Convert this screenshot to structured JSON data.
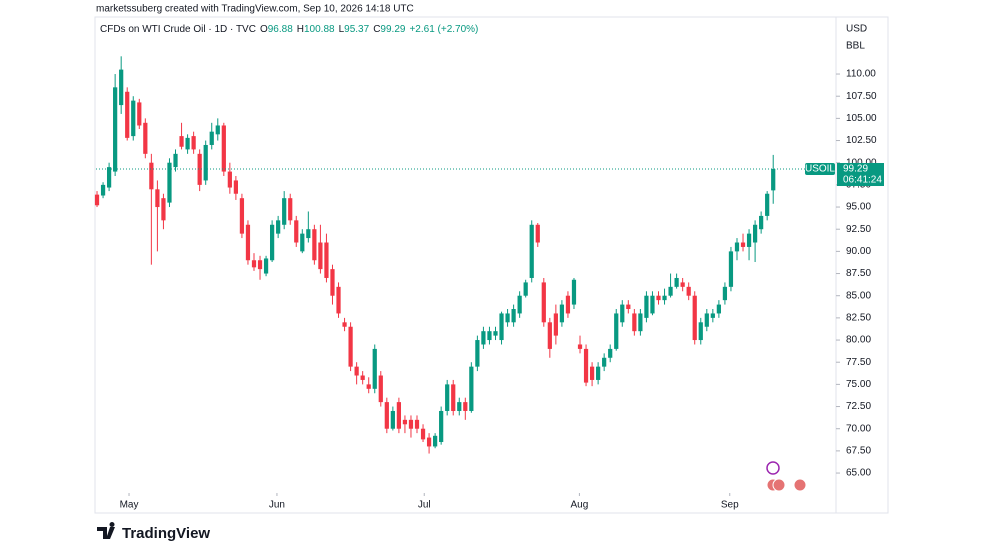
{
  "chart_data": {
    "type": "candlestick",
    "attribution": "marketssuberg created with TradingView.com, Sep 10, 2026 14:18 UTC",
    "title": "CFDs on WTI Crude Oil · 1D · TVC",
    "legend_values": [
      {
        "label": "O",
        "value": 96.88
      },
      {
        "label": "H",
        "value": 100.88
      },
      {
        "label": "L",
        "value": 95.37
      },
      {
        "label": "C",
        "value": 99.29
      }
    ],
    "change": "+2.61 (+2.70%)",
    "currency": "USD",
    "unit": "BBL",
    "symbol": "USOIL",
    "last_price": 99.29,
    "countdown": "06:41:24",
    "brand": "TradingView",
    "up_color": "#089981",
    "down_color": "#f23645",
    "xlim": [
      -0.17,
      122.4
    ],
    "xticks": [
      {
        "value": 5.3,
        "label": "May"
      },
      {
        "value": 29.8,
        "label": "Jun"
      },
      {
        "value": 54.2,
        "label": "Jul"
      },
      {
        "value": 79.9,
        "label": "Aug"
      },
      {
        "value": 104.8,
        "label": "Sep"
      }
    ],
    "ylim": [
      62.75,
      116.32
    ],
    "yticks": [
      {
        "value": 65,
        "label": "65.00"
      },
      {
        "value": 67.5,
        "label": "67.50"
      },
      {
        "value": 70,
        "label": "70.00"
      },
      {
        "value": 72.5,
        "label": "72.50"
      },
      {
        "value": 75,
        "label": "75.00"
      },
      {
        "value": 77.5,
        "label": "77.50"
      },
      {
        "value": 80,
        "label": "80.00"
      },
      {
        "value": 82.5,
        "label": "82.50"
      },
      {
        "value": 85,
        "label": "85.00"
      },
      {
        "value": 87.5,
        "label": "87.50"
      },
      {
        "value": 90,
        "label": "90.00"
      },
      {
        "value": 92.5,
        "label": "92.50"
      },
      {
        "value": 95,
        "label": "95.00"
      },
      {
        "value": 97.5,
        "label": "97.50"
      },
      {
        "value": 100,
        "label": "100.00"
      },
      {
        "value": 102.5,
        "label": "102.50"
      },
      {
        "value": 105,
        "label": "105.00"
      },
      {
        "value": 107.5,
        "label": "107.50"
      },
      {
        "value": 110,
        "label": "110.00"
      }
    ],
    "candles": [
      [
        96.4,
        96.8,
        95,
        95.2
      ],
      [
        96.3,
        97.8,
        96,
        97.5
      ],
      [
        97.2,
        100,
        96.8,
        99.5
      ],
      [
        99,
        110,
        98.5,
        108.5
      ],
      [
        106.5,
        112,
        105.5,
        110.5
      ],
      [
        108,
        108.5,
        102.5,
        102.8
      ],
      [
        103,
        107.5,
        102.5,
        107
      ],
      [
        106.8,
        107.2,
        103.8,
        104.2
      ],
      [
        104.5,
        105,
        100.5,
        101
      ],
      [
        100,
        101,
        88.5,
        97
      ],
      [
        97,
        98,
        90,
        95
      ],
      [
        96,
        96.5,
        92.5,
        93.5
      ],
      [
        95.5,
        100.5,
        95,
        100
      ],
      [
        99.5,
        101.5,
        99,
        101
      ],
      [
        103,
        104.5,
        101.5,
        101.8
      ],
      [
        101.5,
        103.2,
        101,
        102.8
      ],
      [
        103,
        103.5,
        101,
        101.5
      ],
      [
        101,
        101.5,
        96.8,
        97.5
      ],
      [
        98,
        102.5,
        97.5,
        102
      ],
      [
        102,
        104.5,
        101.5,
        103.5
      ],
      [
        103.2,
        105,
        102.5,
        104.2
      ],
      [
        104.2,
        104.5,
        98.5,
        99
      ],
      [
        99,
        100,
        96.5,
        97.2
      ],
      [
        98,
        98.5,
        95.8,
        96.5
      ],
      [
        96,
        96.5,
        91.5,
        92
      ],
      [
        93,
        93.5,
        88.5,
        89
      ],
      [
        89,
        89.8,
        87.8,
        88.2
      ],
      [
        89,
        89.5,
        86.8,
        88
      ],
      [
        87.5,
        89.5,
        87.2,
        89.2
      ],
      [
        89,
        93.5,
        88.8,
        93
      ],
      [
        92,
        94,
        91.5,
        93.5
      ],
      [
        93,
        96.8,
        92.5,
        96
      ],
      [
        96,
        96.5,
        93,
        93.5
      ],
      [
        93.5,
        94,
        90.5,
        91
      ],
      [
        90,
        92.5,
        89.8,
        92
      ],
      [
        91.5,
        94.5,
        91,
        92.5
      ],
      [
        92.5,
        93,
        88.5,
        89
      ],
      [
        91,
        93,
        87.5,
        88
      ],
      [
        91,
        92,
        86.5,
        87
      ],
      [
        88,
        88.5,
        84,
        85
      ],
      [
        86,
        86.5,
        82.5,
        83
      ],
      [
        82,
        82.5,
        81,
        81.5
      ],
      [
        81.5,
        82,
        76.5,
        77
      ],
      [
        77,
        77.5,
        75,
        76
      ],
      [
        76,
        76.5,
        75,
        75.5
      ],
      [
        75,
        75.8,
        74,
        74.5
      ],
      [
        74.5,
        79.5,
        74,
        79
      ],
      [
        76,
        76.5,
        72.5,
        73
      ],
      [
        73,
        73.5,
        69.5,
        70
      ],
      [
        70,
        72.5,
        69.8,
        72
      ],
      [
        73,
        73.5,
        69.5,
        70
      ],
      [
        71,
        71.5,
        69.5,
        70.5
      ],
      [
        71,
        71.5,
        69,
        70
      ],
      [
        71,
        71.5,
        69.5,
        70
      ],
      [
        70,
        70.5,
        68.5,
        68.8
      ],
      [
        69,
        69.5,
        67.2,
        68
      ],
      [
        68,
        69.5,
        67.8,
        69.2
      ],
      [
        68.5,
        72.5,
        68.2,
        72
      ],
      [
        72,
        75.5,
        71.5,
        75
      ],
      [
        75,
        75.5,
        71.5,
        72
      ],
      [
        72,
        73.5,
        71.5,
        73
      ],
      [
        73,
        73.5,
        71,
        72
      ],
      [
        72,
        77.5,
        71.8,
        77
      ],
      [
        77,
        80.5,
        76.5,
        80
      ],
      [
        79.5,
        81.5,
        79,
        81
      ],
      [
        80,
        81.5,
        79.5,
        81
      ],
      [
        80.5,
        81.5,
        80,
        81
      ],
      [
        80,
        83.2,
        79.5,
        83
      ],
      [
        82,
        83.5,
        81.5,
        83
      ],
      [
        82,
        84,
        81.5,
        83.5
      ],
      [
        83,
        85.5,
        82.5,
        85
      ],
      [
        85,
        86.8,
        84.8,
        86.5
      ],
      [
        87,
        93.5,
        86.5,
        93
      ],
      [
        93,
        93.2,
        90.5,
        91
      ],
      [
        86.5,
        87,
        81.5,
        82
      ],
      [
        82,
        82.5,
        78,
        79
      ],
      [
        83,
        84,
        79.5,
        80.5
      ],
      [
        82,
        84.5,
        81.5,
        84
      ],
      [
        85,
        85.5,
        82.5,
        83
      ],
      [
        84,
        87,
        83.5,
        86.8
      ],
      [
        79.5,
        80.5,
        78.5,
        79
      ],
      [
        79,
        79.5,
        74.8,
        75.2
      ],
      [
        77,
        77.5,
        74.8,
        75.5
      ],
      [
        75.5,
        77.5,
        75,
        77
      ],
      [
        77,
        78.5,
        76.5,
        78
      ],
      [
        78,
        79.5,
        77.5,
        79
      ],
      [
        79,
        83.5,
        78.8,
        83
      ],
      [
        82,
        84.5,
        81.5,
        84
      ],
      [
        84,
        84.5,
        83,
        83.5
      ],
      [
        83,
        83.5,
        80.5,
        81
      ],
      [
        81,
        83.5,
        80.5,
        83
      ],
      [
        82.5,
        85.5,
        82,
        85
      ],
      [
        83,
        85.5,
        82.8,
        85
      ],
      [
        85,
        85.5,
        84,
        84.5
      ],
      [
        84.5,
        85.8,
        84,
        85
      ],
      [
        85,
        87.5,
        84.8,
        86
      ],
      [
        86,
        87.5,
        85.8,
        87
      ],
      [
        86.5,
        87,
        85.5,
        86
      ],
      [
        86,
        86.5,
        84.5,
        85
      ],
      [
        85,
        85.5,
        79.5,
        80
      ],
      [
        80,
        82.5,
        79.5,
        82
      ],
      [
        81.5,
        83.5,
        81,
        83
      ],
      [
        82.5,
        83.5,
        82,
        83
      ],
      [
        83,
        84.5,
        82.5,
        84
      ],
      [
        84.5,
        86.5,
        84,
        86
      ],
      [
        86,
        90.5,
        85.5,
        90
      ],
      [
        90,
        91.5,
        89,
        91
      ],
      [
        91,
        92,
        90,
        90.5
      ],
      [
        90.5,
        92.5,
        89,
        92
      ],
      [
        91,
        93.5,
        88.8,
        93
      ],
      [
        92.5,
        94.5,
        92,
        94
      ],
      [
        94,
        96.8,
        93.5,
        96.5
      ],
      [
        96.88,
        100.88,
        95.37,
        99.29
      ]
    ]
  }
}
